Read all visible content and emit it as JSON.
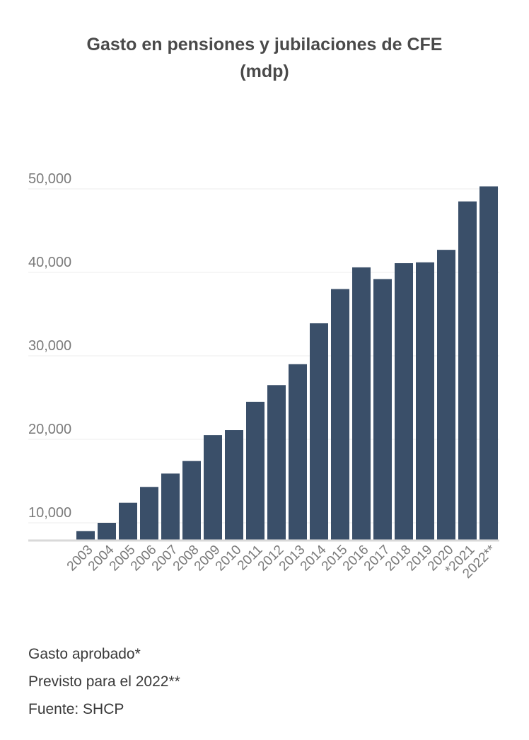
{
  "title_line1": "Gasto en pensiones y jubilaciones de CFE",
  "title_line2": "(mdp)",
  "notes": [
    "Gasto aprobado*",
    "Previsto para el 2022**",
    "Fuente: SHCP"
  ],
  "colors": {
    "bar": "#3a4f69",
    "grid": "#eeeeee",
    "axis": "#d9d9d9",
    "text": "#7a7a7a"
  },
  "chart_data": {
    "type": "bar",
    "title": "Gasto en pensiones y jubilaciones de CFE (mdp)",
    "categories": [
      "2003",
      "2004",
      "2005",
      "2006",
      "2007",
      "2008",
      "2009",
      "2010",
      "2011",
      "2012",
      "2013",
      "2014",
      "2015",
      "2016",
      "2017",
      "2018",
      "2019",
      "2020",
      "*2021",
      "2022**"
    ],
    "values": [
      9000,
      10000,
      12400,
      14300,
      15900,
      17400,
      20500,
      21100,
      24500,
      26500,
      29000,
      33900,
      38000,
      40600,
      39200,
      41100,
      41200,
      42700,
      48500,
      50300
    ],
    "yticks": [
      10000,
      20000,
      30000,
      40000,
      50000
    ],
    "ytick_labels": [
      "10,000",
      "20,000",
      "30,000",
      "40,000",
      "50,000"
    ],
    "ylim": [
      8000,
      50000
    ],
    "grid": true,
    "legend": "none"
  }
}
